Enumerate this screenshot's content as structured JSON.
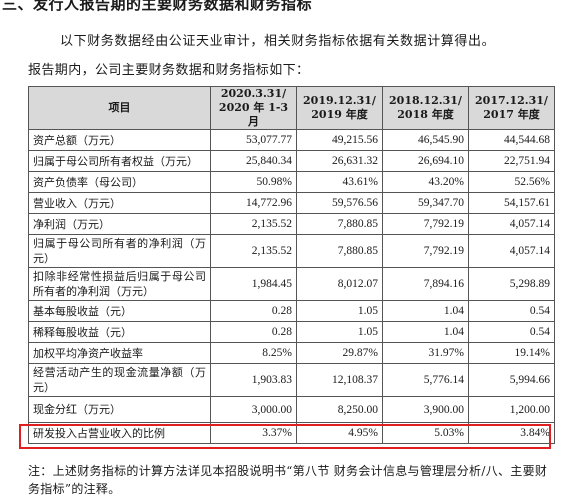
{
  "section_title": "三、发行人报告期的主要财务数据和财务指标",
  "intro_line1": "以下财务数据经由公证天业审计，相关财务指标依据有关数据计算得出。",
  "intro_line2": "报告期内，公司主要财务数据和财务指标如下：",
  "table": {
    "headers": [
      "项目",
      "2020.3.31/\n2020 年 1-3 月",
      "2019.12.31/\n2019 年度",
      "2018.12.31/\n2018 年度",
      "2017.12.31/\n2017 年度"
    ],
    "rows": [
      {
        "label": "资产总额（万元）",
        "values": [
          "53,077.77",
          "49,215.56",
          "46,545.90",
          "44,544.68"
        ]
      },
      {
        "label": "归属于母公司所有者权益（万元）",
        "values": [
          "25,840.34",
          "26,631.32",
          "26,694.10",
          "22,751.94"
        ]
      },
      {
        "label": "资产负债率（母公司）",
        "values": [
          "50.98%",
          "43.61%",
          "43.20%",
          "52.56%"
        ]
      },
      {
        "label": "营业收入（万元）",
        "values": [
          "14,772.96",
          "59,576.56",
          "59,347.70",
          "54,157.61"
        ]
      },
      {
        "label": "净利润（万元）",
        "values": [
          "2,135.52",
          "7,880.85",
          "7,792.19",
          "4,057.14"
        ]
      },
      {
        "label": "归属于母公司所有者的净利润（万元）",
        "values": [
          "2,135.52",
          "7,880.85",
          "7,792.19",
          "4,057.14"
        ]
      },
      {
        "label": "扣除非经常性损益后归属于母公司所有者的净利润（万元）",
        "values": [
          "1,984.45",
          "8,012.07",
          "7,894.16",
          "5,298.89"
        ]
      },
      {
        "label": "基本每股收益（元）",
        "values": [
          "0.28",
          "1.05",
          "1.04",
          "0.54"
        ]
      },
      {
        "label": "稀释每股收益（元）",
        "values": [
          "0.28",
          "1.05",
          "1.04",
          "0.54"
        ]
      },
      {
        "label": "加权平均净资产收益率",
        "values": [
          "8.25%",
          "29.87%",
          "31.97%",
          "19.14%"
        ]
      },
      {
        "label": "经营活动产生的现金流量净额（万元）",
        "values": [
          "1,903.83",
          "12,108.37",
          "5,776.14",
          "5,994.66"
        ]
      },
      {
        "label": "现金分红（万元）",
        "values": [
          "3,000.00",
          "8,250.00",
          "3,900.00",
          "1,200.00"
        ]
      },
      {
        "label": "研发投入占营业收入的比例",
        "values": [
          "3.37%",
          "4.95%",
          "5.03%",
          "3.84%"
        ]
      }
    ]
  },
  "highlight_color": "#e02020",
  "footnote": "注：上述财务指标的计算方法详见本招股说明书“第八节 财务会计信息与管理层分析/八、主要财务指标”的注释。"
}
